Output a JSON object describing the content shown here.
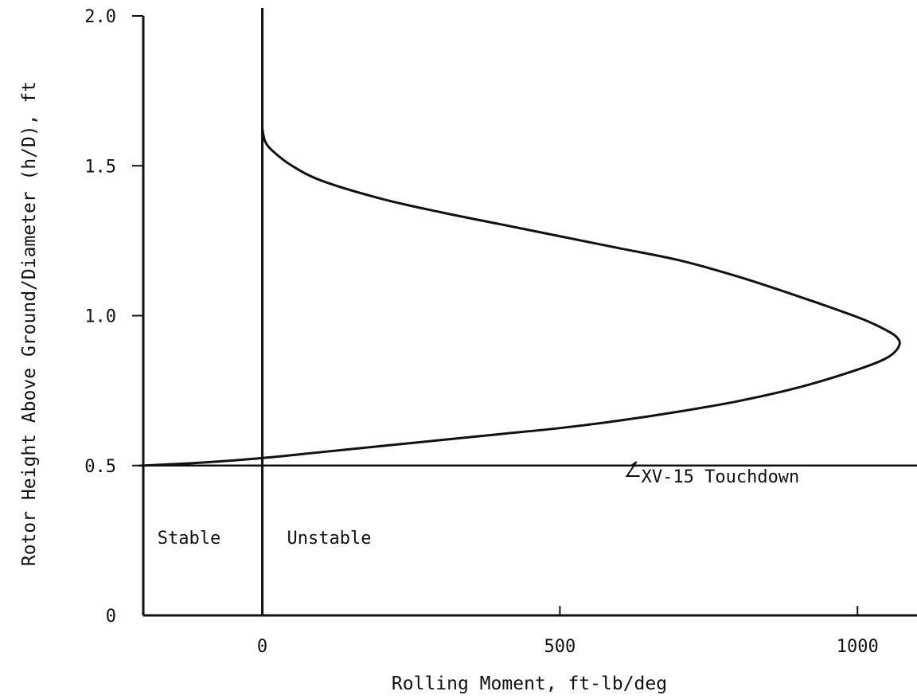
{
  "chart_data": {
    "type": "line",
    "title": "",
    "xlabel": "Rolling Moment, ft-lb/deg",
    "ylabel": "Rotor Height Above Ground/Diameter (h/D), ft",
    "xlim": [
      -200,
      1100
    ],
    "ylim": [
      0,
      2.0
    ],
    "x_ticks": [
      0,
      500,
      1000
    ],
    "x_tick_labels": [
      "0",
      "500",
      "1000"
    ],
    "y_ticks": [
      0,
      0.5,
      1.0,
      1.5,
      2.0
    ],
    "y_tick_labels": [
      "0",
      "0.5",
      "1.0",
      "1.5",
      "2.0"
    ],
    "grid": false,
    "series": [
      {
        "name": "",
        "points": [
          {
            "x": -200,
            "y": 0.5
          },
          {
            "x": -100,
            "y": 0.51
          },
          {
            "x": 0,
            "y": 0.525
          },
          {
            "x": 100,
            "y": 0.545
          },
          {
            "x": 200,
            "y": 0.565
          },
          {
            "x": 300,
            "y": 0.585
          },
          {
            "x": 400,
            "y": 0.605
          },
          {
            "x": 500,
            "y": 0.625
          },
          {
            "x": 600,
            "y": 0.65
          },
          {
            "x": 700,
            "y": 0.68
          },
          {
            "x": 800,
            "y": 0.715
          },
          {
            "x": 900,
            "y": 0.76
          },
          {
            "x": 1000,
            "y": 0.82
          },
          {
            "x": 1050,
            "y": 0.86
          },
          {
            "x": 1070,
            "y": 0.9
          },
          {
            "x": 1065,
            "y": 0.93
          },
          {
            "x": 1040,
            "y": 0.96
          },
          {
            "x": 1000,
            "y": 0.995
          },
          {
            "x": 900,
            "y": 1.065
          },
          {
            "x": 800,
            "y": 1.13
          },
          {
            "x": 700,
            "y": 1.185
          },
          {
            "x": 600,
            "y": 1.225
          },
          {
            "x": 500,
            "y": 1.265
          },
          {
            "x": 400,
            "y": 1.305
          },
          {
            "x": 300,
            "y": 1.345
          },
          {
            "x": 200,
            "y": 1.39
          },
          {
            "x": 100,
            "y": 1.45
          },
          {
            "x": 50,
            "y": 1.5
          },
          {
            "x": 20,
            "y": 1.545
          },
          {
            "x": 5,
            "y": 1.58
          },
          {
            "x": 0,
            "y": 1.625
          }
        ]
      }
    ],
    "reference_lines": [
      {
        "orientation": "horizontal",
        "value": 0.5
      },
      {
        "orientation": "vertical",
        "value": 0
      }
    ],
    "annotations": {
      "touchdown": {
        "text": "XV-15 Touchdown",
        "x": 610,
        "y": 0.47
      },
      "stable": {
        "text": "Stable",
        "x": -100,
        "y": 0.26
      },
      "unstable": {
        "text": "Unstable",
        "x": 115,
        "y": 0.26
      }
    }
  }
}
